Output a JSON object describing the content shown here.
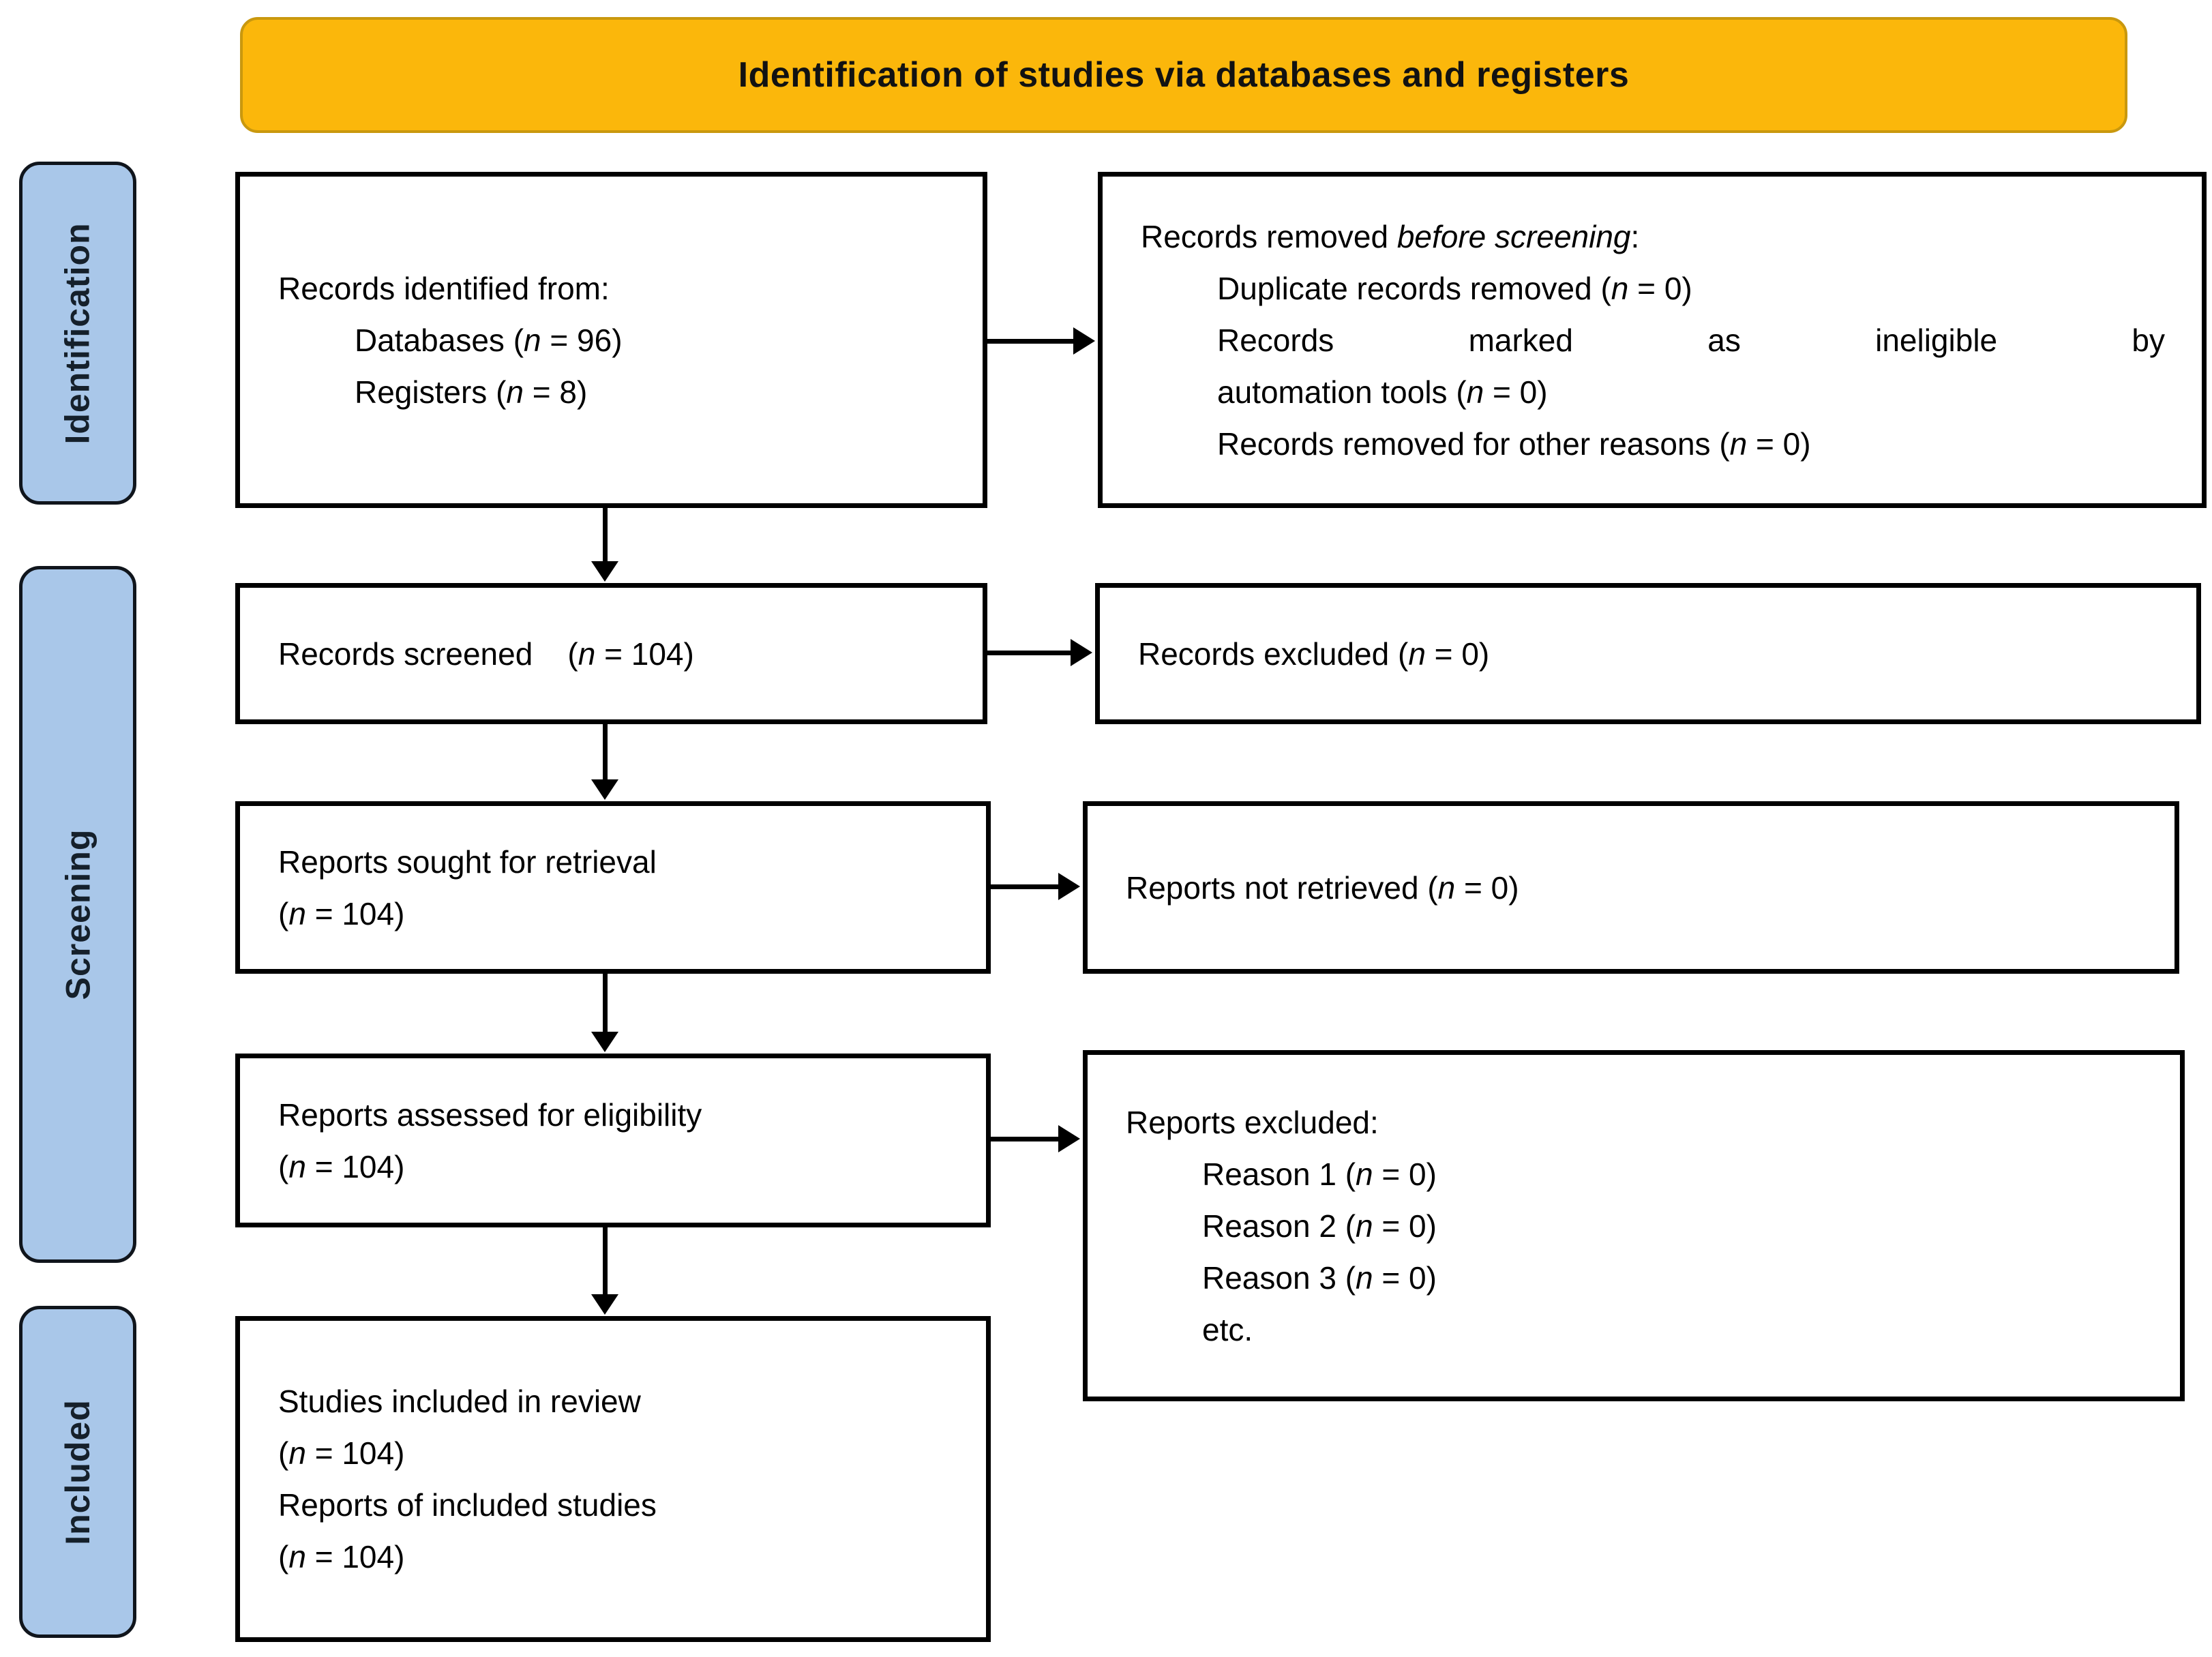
{
  "title": "Identification of studies via databases and registers",
  "colors": {
    "banner_fill": "#fbb70b",
    "banner_border": "#c9980e",
    "stage_fill": "#a9c7e9",
    "stage_text": "#15202b",
    "box_border": "#000000",
    "text": "#000000"
  },
  "sidebar": {
    "items": [
      {
        "label": "Identification"
      },
      {
        "label": "Screening"
      },
      {
        "label": "Included"
      }
    ]
  },
  "boxes": {
    "records_identified": {
      "lines": [
        {
          "t": "Records identified from:",
          "indent": 0
        },
        {
          "t": "Databases (*n* = 96)",
          "indent": 1
        },
        {
          "t": "Registers (*n* = 8)",
          "indent": 1
        }
      ]
    },
    "records_removed": {
      "lines": [
        {
          "t": "Records removed *before screening*:",
          "indent": 0
        },
        {
          "t": "Duplicate records removed (*n* = 0)",
          "indent": 1
        },
        {
          "t": "Records marked as ineligible by",
          "indent": 1,
          "justify": true
        },
        {
          "t": "automation tools (*n* = 0)",
          "indent": 1
        },
        {
          "t": "Records removed for other reasons (*n* = 0)",
          "indent": 1
        }
      ]
    },
    "records_screened": {
      "lines": [
        {
          "t": "Records screened    (*n* = 104)",
          "indent": 0
        }
      ]
    },
    "records_excluded": {
      "lines": [
        {
          "t": "Records excluded (*n* = 0)",
          "indent": 0
        }
      ]
    },
    "reports_sought": {
      "lines": [
        {
          "t": "Reports sought for retrieval",
          "indent": 0
        },
        {
          "t": "(*n* = 104)",
          "indent": 0
        }
      ]
    },
    "reports_not_retrieved": {
      "lines": [
        {
          "t": "Reports not retrieved (*n* = 0)",
          "indent": 0
        }
      ]
    },
    "reports_assessed": {
      "lines": [
        {
          "t": "Reports assessed for eligibility",
          "indent": 0
        },
        {
          "t": "(*n* = 104)",
          "indent": 0
        }
      ]
    },
    "reports_excluded": {
      "lines": [
        {
          "t": "Reports excluded:",
          "indent": 0
        },
        {
          "t": "Reason 1 (*n* = 0)",
          "indent": 1
        },
        {
          "t": "Reason 2 (*n* = 0)",
          "indent": 1
        },
        {
          "t": "Reason 3 (*n* = 0)",
          "indent": 1
        },
        {
          "t": "etc.",
          "indent": 1
        }
      ]
    },
    "studies_included": {
      "lines": [
        {
          "t": "Studies included in review",
          "indent": 0
        },
        {
          "t": "(*n* = 104)",
          "indent": 0
        },
        {
          "t": "Reports of included studies",
          "indent": 0
        },
        {
          "t": "(*n* = 104)",
          "indent": 0
        }
      ]
    }
  }
}
